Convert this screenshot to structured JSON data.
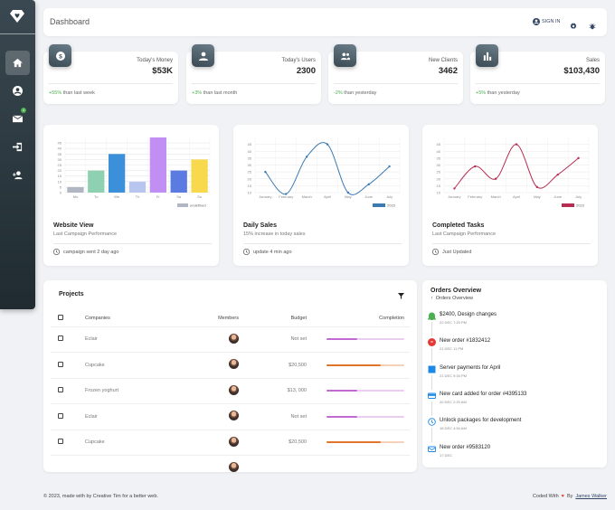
{
  "header": {
    "title": "Dashboard",
    "sign_in": "SIGN IN"
  },
  "sidebar": {
    "items": [
      {
        "name": "home"
      },
      {
        "name": "account"
      },
      {
        "name": "mail",
        "badge": "4"
      },
      {
        "name": "sign-in"
      },
      {
        "name": "sign-up"
      }
    ]
  },
  "stats": [
    {
      "label": "Today's Money",
      "value": "$53K",
      "change": "+55%",
      "suffix": " than last week",
      "icon": "dollar-icon"
    },
    {
      "label": "Today's Users",
      "value": "2300",
      "change": "+3%",
      "suffix": " than last month",
      "icon": "person-icon"
    },
    {
      "label": "New Clients",
      "value": "3462",
      "change": "-2%",
      "suffix": " than yesterday",
      "icon": "group-icon"
    },
    {
      "label": "Sales",
      "value": "$103,430",
      "change": "+5%",
      "suffix": " than yesterday",
      "icon": "bar-chart-icon"
    }
  ],
  "charts": [
    {
      "title": "Website View",
      "subtitle": "Last Campaign Performance",
      "footer": "campaign sent 2 day ago"
    },
    {
      "title": "Daily Sales",
      "subtitle": "15% increase in today sales",
      "footer": "update 4 min ago"
    },
    {
      "title": "Completed Tasks",
      "subtitle": "Last Campaign Performance",
      "footer": "Just Updated"
    }
  ],
  "chart_data": [
    {
      "type": "bar",
      "categories": [
        "Mo",
        "Tu",
        "We",
        "Th",
        "Fr",
        "Sa",
        "Su"
      ],
      "values": [
        5,
        20,
        35,
        10,
        50,
        20,
        30
      ],
      "ylim": [
        0,
        50
      ],
      "yticks": [
        0,
        5,
        10,
        15,
        20,
        25,
        30,
        35,
        40,
        45
      ],
      "legend": "undefined",
      "colors": [
        "#b0b7c3",
        "#8ed1b0",
        "#3c8fd9",
        "#b8c6ef",
        "#c18ef3",
        "#5b7be3",
        "#f8d84c"
      ]
    },
    {
      "type": "line",
      "categories": [
        "January",
        "February",
        "March",
        "April",
        "May",
        "June",
        "July"
      ],
      "values": [
        25,
        9,
        36,
        45,
        10,
        16,
        29
      ],
      "ylim": [
        10,
        50
      ],
      "yticks": [
        10,
        15,
        20,
        25,
        30,
        35,
        40,
        45
      ],
      "legend": "2023",
      "color": "#3c7ab0"
    },
    {
      "type": "line",
      "categories": [
        "January",
        "February",
        "March",
        "April",
        "May",
        "June",
        "July"
      ],
      "values": [
        13,
        29,
        20,
        45,
        14,
        23,
        35
      ],
      "ylim": [
        10,
        50
      ],
      "yticks": [
        10,
        15,
        20,
        25,
        30,
        35,
        40,
        45
      ],
      "legend": "2023",
      "color": "#b72d51"
    }
  ],
  "projects": {
    "title": "Projects",
    "columns": [
      "Companies",
      "Members",
      "Budget",
      "Completion"
    ],
    "rows": [
      {
        "company": "Eclair",
        "budget": "Not set",
        "completion": 0.4,
        "color": "#c16ad2"
      },
      {
        "company": "Cupcake",
        "budget": "$20,500",
        "completion": 0.7,
        "color": "#e0752c"
      },
      {
        "company": "Frozen yoghurt",
        "budget": "$13, 000",
        "completion": 0.4,
        "color": "#c16ad2"
      },
      {
        "company": "Eclair",
        "budget": "Not set",
        "completion": 0.4,
        "color": "#c16ad2"
      },
      {
        "company": "Cupcake",
        "budget": "$20,500",
        "completion": 0.7,
        "color": "#e0752c"
      }
    ]
  },
  "orders": {
    "title": "Orders Overview",
    "subtitle": "Orders Overview",
    "items": [
      {
        "name": "$2400, Design changes",
        "date": "22 DEC 7:20 PM",
        "icon": "bell-icon",
        "color": "#4caf50"
      },
      {
        "name": "New order #1832412",
        "date": "21 DEC 11 PM",
        "icon": "cart-icon",
        "color": "#e53935"
      },
      {
        "name": "Server payments for April",
        "date": "21 DEC 9:34 PM",
        "icon": "server-icon",
        "color": "#1e88e5"
      },
      {
        "name": "New card added for order #4395133",
        "date": "20 DEC 2:20 AM",
        "icon": "card-icon",
        "color": "#1e88e5"
      },
      {
        "name": "Unlock packages for development",
        "date": "18 DEC 4:54 AM",
        "icon": "lock-icon",
        "color": "#1e88e5"
      },
      {
        "name": "New order #9583120",
        "date": "17 DEC",
        "icon": "order-icon",
        "color": "#1e88e5"
      }
    ]
  },
  "footer": {
    "left": "© 2023, made with by Creative Tim for a better web.",
    "coded": "Coded With",
    "by": "By",
    "author": "James Walker"
  }
}
